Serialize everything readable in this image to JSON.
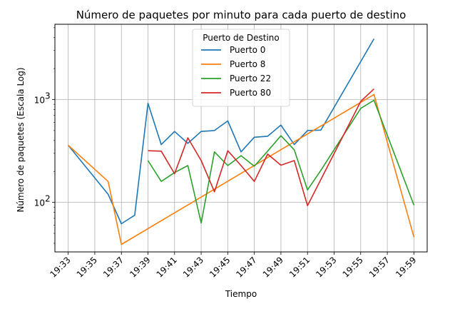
{
  "chart_data": {
    "type": "line",
    "title": "Número de paquetes por minuto para cada puerto de destino",
    "xlabel": "Tiempo",
    "ylabel": "Número de paquetes (Escala Log)",
    "yscale": "log",
    "ylim": [
      33,
      5400
    ],
    "xlim": [
      "19:32",
      "20:00"
    ],
    "x_ticks": [
      "19:33",
      "19:35",
      "19:37",
      "19:39",
      "19:41",
      "19:43",
      "19:45",
      "19:47",
      "19:49",
      "19:51",
      "19:53",
      "19:55",
      "19:57",
      "19:59"
    ],
    "y_ticks": [
      {
        "value": 100,
        "base": "10",
        "exp": "2"
      },
      {
        "value": 1000,
        "base": "10",
        "exp": "3"
      }
    ],
    "grid": true,
    "legend": {
      "title": "Puerto de Destino",
      "position": "upper-center"
    },
    "series": [
      {
        "name": "Puerto 0",
        "color": "#1f77b4",
        "points": [
          [
            "19:33",
            360
          ],
          [
            "19:36",
            120
          ],
          [
            "19:37",
            62
          ],
          [
            "19:38",
            75
          ],
          [
            "19:39",
            920
          ],
          [
            "19:40",
            365
          ],
          [
            "19:41",
            490
          ],
          [
            "19:42",
            375
          ],
          [
            "19:43",
            490
          ],
          [
            "19:44",
            500
          ],
          [
            "19:45",
            620
          ],
          [
            "19:46",
            310
          ],
          [
            "19:47",
            430
          ],
          [
            "19:48",
            440
          ],
          [
            "19:49",
            565
          ],
          [
            "19:50",
            365
          ],
          [
            "19:51",
            500
          ],
          [
            "19:52",
            505
          ],
          [
            "19:56",
            3900
          ]
        ]
      },
      {
        "name": "Puerto 8",
        "color": "#ff7f0e",
        "points": [
          [
            "19:33",
            360
          ],
          [
            "19:36",
            160
          ],
          [
            "19:37",
            39
          ],
          [
            "19:56",
            1120
          ],
          [
            "19:59",
            46
          ]
        ]
      },
      {
        "name": "Puerto 22",
        "color": "#2ca02c",
        "points": [
          [
            "19:39",
            255
          ],
          [
            "19:40",
            160
          ],
          [
            "19:41",
            195
          ],
          [
            "19:42",
            228
          ],
          [
            "19:43",
            63
          ],
          [
            "19:44",
            310
          ],
          [
            "19:45",
            228
          ],
          [
            "19:46",
            285
          ],
          [
            "19:47",
            225
          ],
          [
            "19:48",
            315
          ],
          [
            "19:49",
            445
          ],
          [
            "19:50",
            325
          ],
          [
            "19:51",
            132
          ],
          [
            "19:52",
            205
          ],
          [
            "19:55",
            820
          ],
          [
            "19:56",
            985
          ],
          [
            "19:59",
            94
          ]
        ]
      },
      {
        "name": "Puerto 80",
        "color": "#d62728",
        "points": [
          [
            "19:39",
            318
          ],
          [
            "19:40",
            315
          ],
          [
            "19:41",
            190
          ],
          [
            "19:42",
            425
          ],
          [
            "19:43",
            255
          ],
          [
            "19:44",
            127
          ],
          [
            "19:45",
            318
          ],
          [
            "19:46",
            228
          ],
          [
            "19:47",
            160
          ],
          [
            "19:48",
            295
          ],
          [
            "19:49",
            230
          ],
          [
            "19:50",
            255
          ],
          [
            "19:51",
            93
          ],
          [
            "19:55",
            960
          ],
          [
            "19:56",
            1270
          ]
        ]
      }
    ]
  }
}
